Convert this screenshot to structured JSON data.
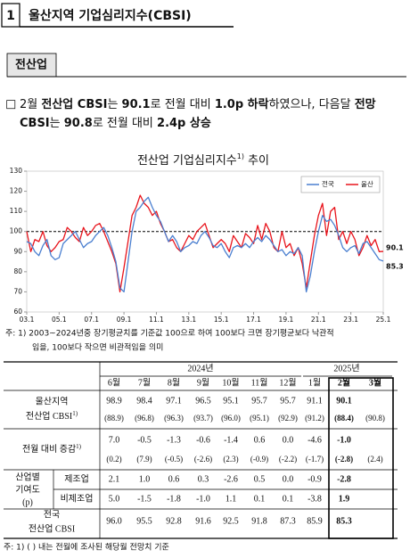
{
  "header": {
    "number": "1",
    "title": "울산지역 기업심리지수(CBSI)"
  },
  "section": {
    "title": "전산업"
  },
  "paragraph": {
    "bullet": "□",
    "lines": [
      [
        {
          "text": "2월 ",
          "bold": false
        },
        {
          "text": "전산업 CBSI",
          "bold": true
        },
        {
          "text": "는 ",
          "bold": false
        },
        {
          "text": "90.1",
          "bold": true
        },
        {
          "text": "로 전월 대비 ",
          "bold": false
        },
        {
          "text": "1.0p 하락",
          "bold": true
        },
        {
          "text": "하였으나, 다음달 ",
          "bold": false
        },
        {
          "text": "전망",
          "bold": true
        }
      ],
      [
        {
          "text": "CBSI",
          "bold": true
        },
        {
          "text": "는 ",
          "bold": false
        },
        {
          "text": "90.8",
          "bold": true
        },
        {
          "text": "로 전월 대비 ",
          "bold": false
        },
        {
          "text": "2.4p 상승",
          "bold": true
        }
      ]
    ]
  },
  "chart_data": {
    "type": "line",
    "title": "전산업 기업심리지수",
    "title_ref": "1)",
    "title_suffix": " 추이",
    "categories": [
      "03.1",
      null,
      null,
      null,
      null,
      null,
      null,
      null,
      "05.1",
      null,
      null,
      null,
      null,
      null,
      null,
      null,
      "07.1",
      null,
      null,
      null,
      null,
      null,
      null,
      null,
      "09.1",
      null,
      null,
      null,
      null,
      null,
      null,
      null,
      "11.1",
      null,
      null,
      null,
      null,
      null,
      null,
      null,
      "13.1",
      null,
      null,
      null,
      null,
      null,
      null,
      null,
      "15.1",
      null,
      null,
      null,
      null,
      null,
      null,
      null,
      "17.1",
      null,
      null,
      null,
      null,
      null,
      null,
      null,
      "19.1",
      null,
      null,
      null,
      null,
      null,
      null,
      null,
      "21.1",
      null,
      null,
      null,
      null,
      null,
      null,
      null,
      "23.1",
      null,
      null,
      null,
      null,
      null,
      null,
      null,
      "25.1"
    ],
    "series": [
      {
        "name": "전국",
        "color": "#4a7fd0",
        "values": [
          95,
          94,
          90,
          88,
          93,
          96,
          88,
          86,
          87,
          94,
          96,
          98,
          100,
          96,
          92,
          94,
          95,
          98,
          100,
          102,
          98,
          92,
          85,
          72,
          70,
          85,
          100,
          110,
          112,
          115,
          117,
          112,
          108,
          105,
          100,
          95,
          98,
          95,
          90,
          92,
          93,
          95,
          94,
          98,
          100,
          97,
          93,
          92,
          94,
          90,
          87,
          92,
          93,
          92,
          94,
          92,
          95,
          97,
          95,
          98,
          96,
          93,
          90,
          91,
          88,
          90,
          89,
          92,
          88,
          70,
          78,
          90,
          100,
          108,
          105,
          106,
          103,
          98,
          92,
          90,
          92,
          93,
          89,
          94,
          95,
          92,
          89,
          86,
          85.3
        ]
      },
      {
        "name": "울산",
        "color": "#e8141c",
        "values": [
          100,
          90,
          96,
          95,
          100,
          93,
          90,
          92,
          95,
          96,
          102,
          100,
          97,
          95,
          102,
          98,
          100,
          103,
          104,
          100,
          95,
          90,
          84,
          70,
          82,
          95,
          108,
          112,
          118,
          114,
          112,
          108,
          110,
          104,
          100,
          95,
          96,
          92,
          90,
          94,
          98,
          96,
          100,
          102,
          104,
          98,
          92,
          94,
          96,
          94,
          90,
          98,
          95,
          92,
          99,
          97,
          94,
          103,
          96,
          104,
          100,
          92,
          90,
          100,
          92,
          94,
          88,
          92,
          84,
          72,
          85,
          98,
          108,
          114,
          98,
          110,
          112,
          96,
          100,
          94,
          100,
          96,
          88,
          92,
          98,
          93,
          96,
          90,
          90.1
        ]
      }
    ],
    "ylim": [
      60,
      130
    ],
    "yticks": [
      60,
      70,
      80,
      90,
      100,
      110,
      120,
      130
    ],
    "reference_line": 100,
    "legend": "upper right",
    "notes": [
      "주:  1)  2003~2024년중 장기평균치를 기준값 100으로 하여 100보다 크면 장기평균보다 낙관적",
      "임을, 100보다 작으면 비관적임을 의미"
    ]
  },
  "table": {
    "years": [
      "2024년",
      "2025년"
    ],
    "months": [
      "6월",
      "7월",
      "8월",
      "9월",
      "10월",
      "11월",
      "12월",
      "1월",
      "2월",
      "3월"
    ],
    "ulsan": {
      "label": [
        "울산지역",
        "전산업 CBSI"
      ],
      "ref": "1)",
      "values": [
        "98.9",
        "98.4",
        "97.1",
        "96.5",
        "95.1",
        "95.7",
        "95.7",
        "91.1",
        "90.1",
        null
      ],
      "forecasts": [
        "(88.9)",
        "(96.8)",
        "(96.3)",
        "(93.7)",
        "(96.0)",
        "(95.1)",
        "(92.9)",
        "(91.2)",
        "(88.4)",
        "(90.8)"
      ]
    },
    "change": {
      "label": "전월 대비 증감",
      "ref": "1)",
      "values": [
        "7.0",
        "-0.5",
        "-1.3",
        "-0.6",
        "-1.4",
        "0.6",
        "0.0",
        "-4.6",
        "-1.0",
        null
      ],
      "forecasts": [
        "(0.2)",
        "(7.9)",
        "(-0.5)",
        "(-2.6)",
        "(2.3)",
        "(-0.9)",
        "(-2.2)",
        "(-1.7)",
        "(-2.8)",
        "(2.4)"
      ]
    },
    "contribution": {
      "label": [
        "산업별",
        "기여도",
        "(p)"
      ],
      "rows": [
        {
          "label": "제조업",
          "values": [
            "2.1",
            "1.0",
            "0.6",
            "0.3",
            "-2.6",
            "0.5",
            "0.0",
            "-0.9",
            "-2.8",
            null
          ]
        },
        {
          "label": "비제조업",
          "values": [
            "5.0",
            "-1.5",
            "-1.8",
            "-1.0",
            "1.1",
            "0.1",
            "0.1",
            "-3.8",
            "1.9",
            null
          ]
        }
      ]
    },
    "national": {
      "label": [
        "전국",
        "전산업 CBSI"
      ],
      "values": [
        "96.0",
        "95.5",
        "92.8",
        "91.6",
        "92.5",
        "91.8",
        "87.3",
        "85.9",
        "85.3",
        null
      ]
    },
    "footnote": "주: 1)  (   )  내는 전월에 조사된 해당월 전망치 기준"
  }
}
